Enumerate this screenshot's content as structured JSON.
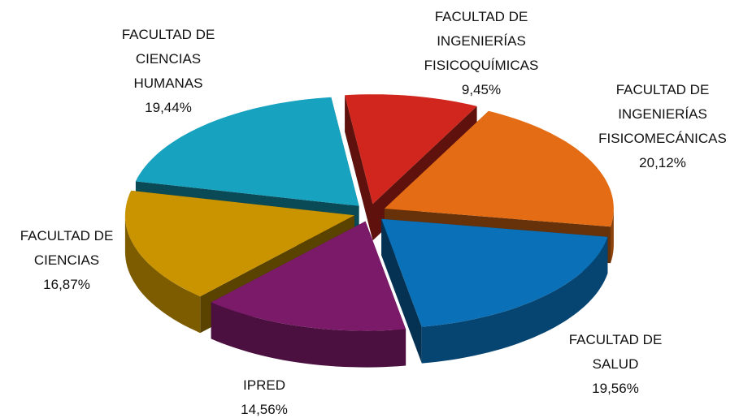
{
  "chart_data": {
    "type": "pie",
    "categories": [
      "FACULTAD DE\nINGENIERÍAS\nFISICOQUÍMICAS",
      "FACULTAD DE\nINGENIERÍAS\nFISICOMECÁNICAS",
      "FACULTAD DE\nSALUD",
      "IPRED",
      "FACULTAD DE\nCIENCIAS",
      "FACULTAD DE\nCIENCIAS\nHUMANAS"
    ],
    "values": [
      9.45,
      20.12,
      19.56,
      14.56,
      16.87,
      19.44
    ],
    "value_labels": [
      "9,45%",
      "20,12%",
      "19,56%",
      "14,56%",
      "16,87%",
      "19,44%"
    ],
    "colors": [
      "#d0261d",
      "#e46c14",
      "#0a70b8",
      "#7a1a68",
      "#c99400",
      "#17a2bf"
    ]
  }
}
